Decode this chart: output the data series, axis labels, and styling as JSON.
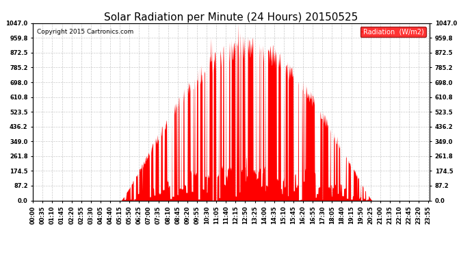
{
  "title": "Solar Radiation per Minute (24 Hours) 20150525",
  "copyright": "Copyright 2015 Cartronics.com",
  "legend_label": "Radiation  (W/m2)",
  "bar_color": "#ff0000",
  "background_color": "#ffffff",
  "grid_color": "#bbbbbb",
  "ymin": 0.0,
  "ymax": 1047.0,
  "yticks": [
    0.0,
    87.2,
    174.5,
    261.8,
    349.0,
    436.2,
    523.5,
    610.8,
    698.0,
    785.2,
    872.5,
    959.8,
    1047.0
  ],
  "total_minutes": 1440,
  "title_fontsize": 11,
  "axis_fontsize": 6,
  "copyright_fontsize": 6.5,
  "legend_fontsize": 7,
  "xtick_step": 35
}
